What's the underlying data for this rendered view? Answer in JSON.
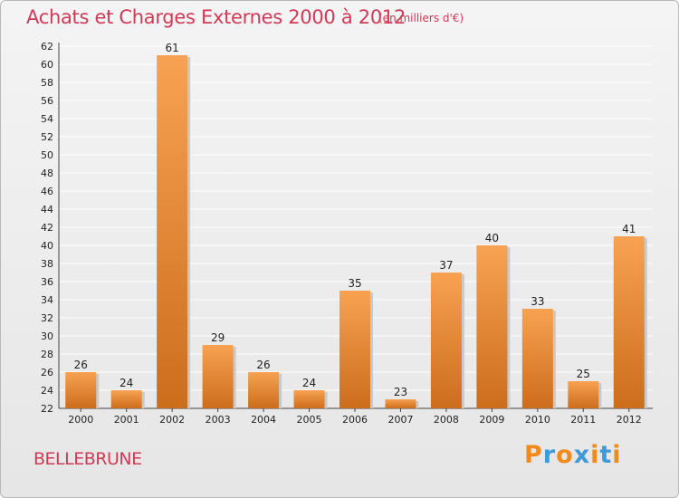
{
  "header": {
    "title": "Achats et Charges Externes 2000 à 2012",
    "unit": "(en milliers d'€)"
  },
  "footer": {
    "commune": "BELLEBRUNE",
    "logo_letters": [
      "P",
      "r",
      "o",
      "x",
      "i",
      "t",
      "i"
    ],
    "logo_colors": [
      "#f08a1c",
      "#3f9ad6",
      "#f08a1c",
      "#3f9ad6",
      "#f08a1c",
      "#3f9ad6",
      "#f08a1c"
    ]
  },
  "colors": {
    "accent": "#d13a57",
    "bar_light": "#f7a252",
    "bar_dark": "#cc6d1c",
    "grid": "#ffffff"
  },
  "chart_data": {
    "type": "bar",
    "title": "Achats et Charges Externes 2000 à 2012",
    "subtitle": "(en milliers d'€)",
    "categories": [
      "2000",
      "2001",
      "2002",
      "2003",
      "2004",
      "2005",
      "2006",
      "2007",
      "2008",
      "2009",
      "2010",
      "2011",
      "2012"
    ],
    "values": [
      26,
      24,
      61,
      29,
      26,
      24,
      35,
      23,
      37,
      40,
      33,
      25,
      41
    ],
    "ylim": [
      22,
      62
    ],
    "yticks": [
      22,
      24,
      26,
      28,
      30,
      32,
      34,
      36,
      38,
      40,
      42,
      44,
      46,
      48,
      50,
      52,
      54,
      56,
      58,
      60,
      62
    ],
    "grid": true,
    "legend": "none"
  }
}
